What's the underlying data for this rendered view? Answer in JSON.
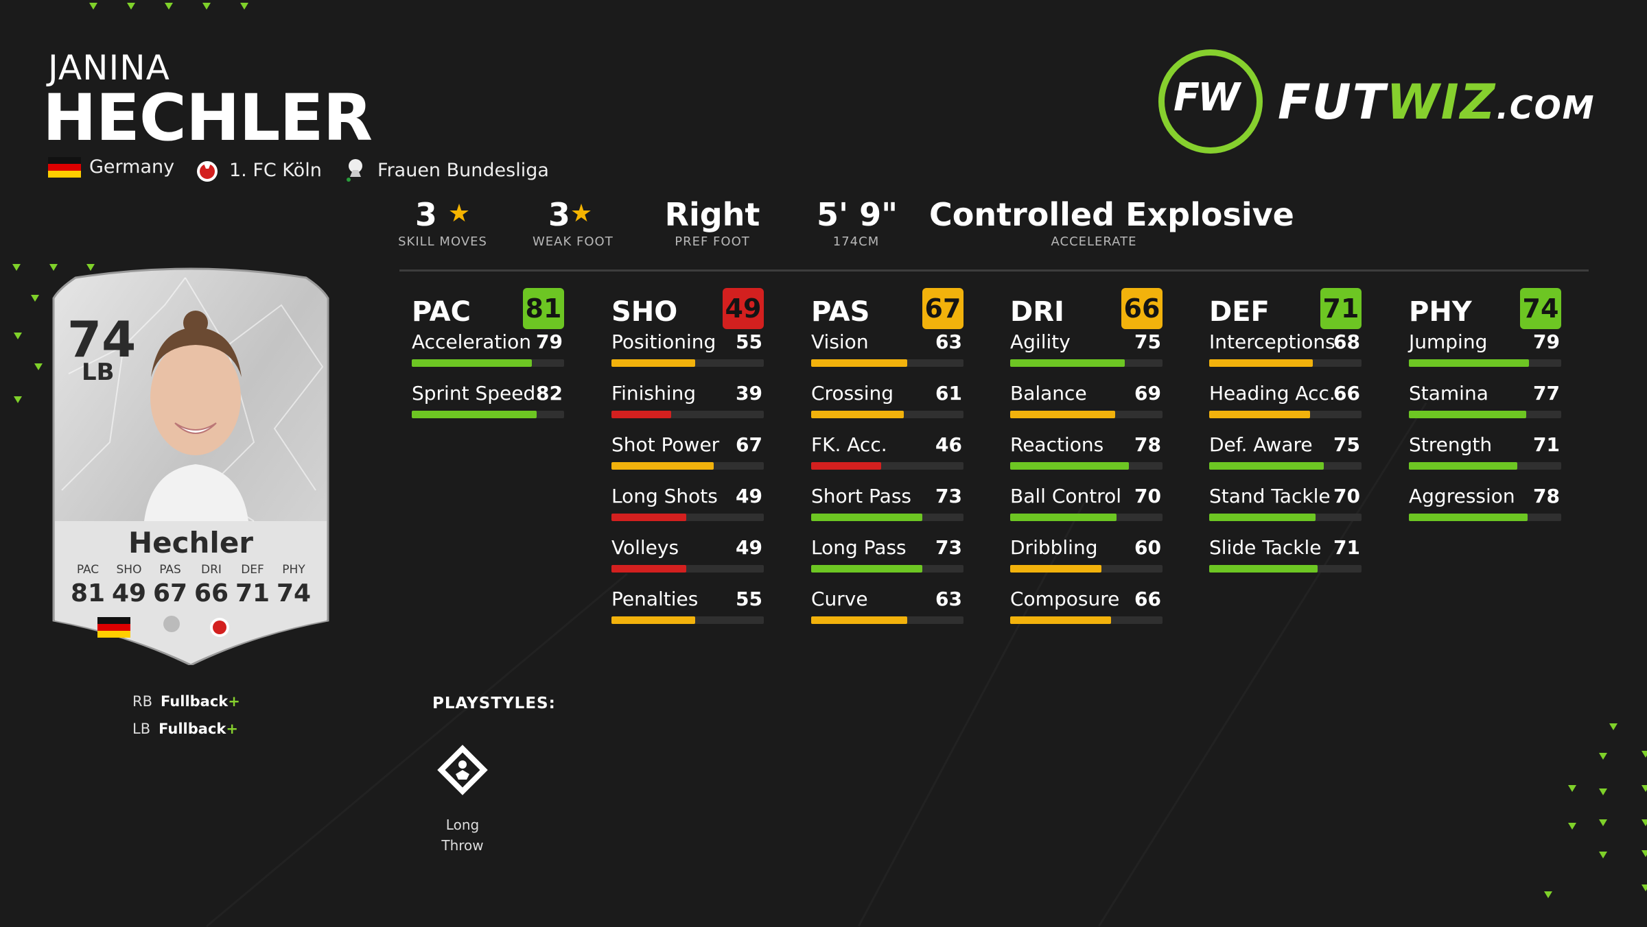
{
  "player": {
    "first_name": "JANINA",
    "last_name": "HECHLER",
    "nation": "Germany",
    "club": "1. FC Köln",
    "league": "Frauen Bundesliga"
  },
  "logo": {
    "main": "FUT",
    "accent": "WIZ",
    "suffix": ".COM",
    "mark": "FW"
  },
  "info": {
    "skill_moves": {
      "value": "3",
      "label": "SKILL MOVES"
    },
    "weak_foot": {
      "value": "3",
      "label": "WEAK FOOT"
    },
    "pref_foot": {
      "value": "Right",
      "label": "PREF FOOT"
    },
    "height": {
      "value": "5' 9\"",
      "label": "174CM"
    },
    "accelerate": {
      "value": "Controlled Explosive",
      "label": "ACCELERATE"
    }
  },
  "card": {
    "rating": "74",
    "position": "LB",
    "name": "Hechler",
    "stats": [
      {
        "label": "PAC",
        "value": "81"
      },
      {
        "label": "SHO",
        "value": "49"
      },
      {
        "label": "PAS",
        "value": "67"
      },
      {
        "label": "DRI",
        "value": "66"
      },
      {
        "label": "DEF",
        "value": "71"
      },
      {
        "label": "PHY",
        "value": "74"
      }
    ]
  },
  "alt_positions": [
    {
      "pos": "RB",
      "role": "Fullback",
      "plus": "+"
    },
    {
      "pos": "LB",
      "role": "Fullback",
      "plus": "+"
    }
  ],
  "playstyles": {
    "title": "PLAYSTYLES:",
    "items": [
      {
        "line1": "Long",
        "line2": "Throw",
        "icon": "long-throw-icon"
      }
    ]
  },
  "colors": {
    "green": "#6dc623",
    "lime": "#86d02e",
    "yellow": "#f2b20c",
    "red": "#d3201f"
  },
  "stat_columns": [
    {
      "name": "PAC",
      "value": 81,
      "stats": [
        {
          "name": "Acceleration",
          "value": 79
        },
        {
          "name": "Sprint Speed",
          "value": 82
        }
      ]
    },
    {
      "name": "SHO",
      "value": 49,
      "stats": [
        {
          "name": "Positioning",
          "value": 55
        },
        {
          "name": "Finishing",
          "value": 39
        },
        {
          "name": "Shot Power",
          "value": 67
        },
        {
          "name": "Long Shots",
          "value": 49
        },
        {
          "name": "Volleys",
          "value": 49
        },
        {
          "name": "Penalties",
          "value": 55
        }
      ]
    },
    {
      "name": "PAS",
      "value": 67,
      "stats": [
        {
          "name": "Vision",
          "value": 63
        },
        {
          "name": "Crossing",
          "value": 61
        },
        {
          "name": "FK. Acc.",
          "value": 46
        },
        {
          "name": "Short Pass",
          "value": 73
        },
        {
          "name": "Long Pass",
          "value": 73
        },
        {
          "name": "Curve",
          "value": 63
        }
      ]
    },
    {
      "name": "DRI",
      "value": 66,
      "stats": [
        {
          "name": "Agility",
          "value": 75
        },
        {
          "name": "Balance",
          "value": 69
        },
        {
          "name": "Reactions",
          "value": 78
        },
        {
          "name": "Ball Control",
          "value": 70
        },
        {
          "name": "Dribbling",
          "value": 60
        },
        {
          "name": "Composure",
          "value": 66
        }
      ]
    },
    {
      "name": "DEF",
      "value": 71,
      "stats": [
        {
          "name": "Interceptions",
          "value": 68
        },
        {
          "name": "Heading Acc.",
          "value": 66
        },
        {
          "name": "Def. Aware",
          "value": 75
        },
        {
          "name": "Stand Tackle",
          "value": 70
        },
        {
          "name": "Slide Tackle",
          "value": 71
        }
      ]
    },
    {
      "name": "PHY",
      "value": 74,
      "stats": [
        {
          "name": "Jumping",
          "value": 79
        },
        {
          "name": "Stamina",
          "value": 77
        },
        {
          "name": "Strength",
          "value": 71
        },
        {
          "name": "Aggression",
          "value": 78
        }
      ]
    }
  ]
}
